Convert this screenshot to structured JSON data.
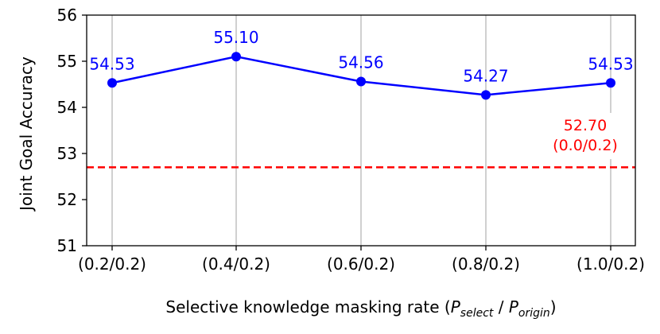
{
  "chart_data": {
    "type": "line",
    "categories": [
      "(0.2/0.2)",
      "(0.4/0.2)",
      "(0.6/0.2)",
      "(0.8/0.2)",
      "(1.0/0.2)"
    ],
    "series": [
      {
        "values": [
          54.53,
          55.1,
          54.56,
          54.27,
          54.53
        ],
        "labels": [
          "54.53",
          "55.10",
          "54.56",
          "54.27",
          "54.53"
        ],
        "color": "#0000ff"
      }
    ],
    "baseline": {
      "value": 52.7,
      "label_value": "52.70",
      "label_setting": "(0.0/0.2)",
      "color": "#ff0000",
      "style": "dashed"
    },
    "ylim": [
      51,
      56
    ],
    "yticks": [
      "51",
      "52",
      "53",
      "54",
      "55",
      "56"
    ],
    "ylabel": "Joint Goal Accuracy",
    "xlabel": {
      "prefix": "Selective knowledge masking rate (",
      "p1": "P",
      "sub1": "select",
      "sep": " / ",
      "p2": "P",
      "sub2": "origin",
      "suffix": ")"
    },
    "grid": "x"
  }
}
